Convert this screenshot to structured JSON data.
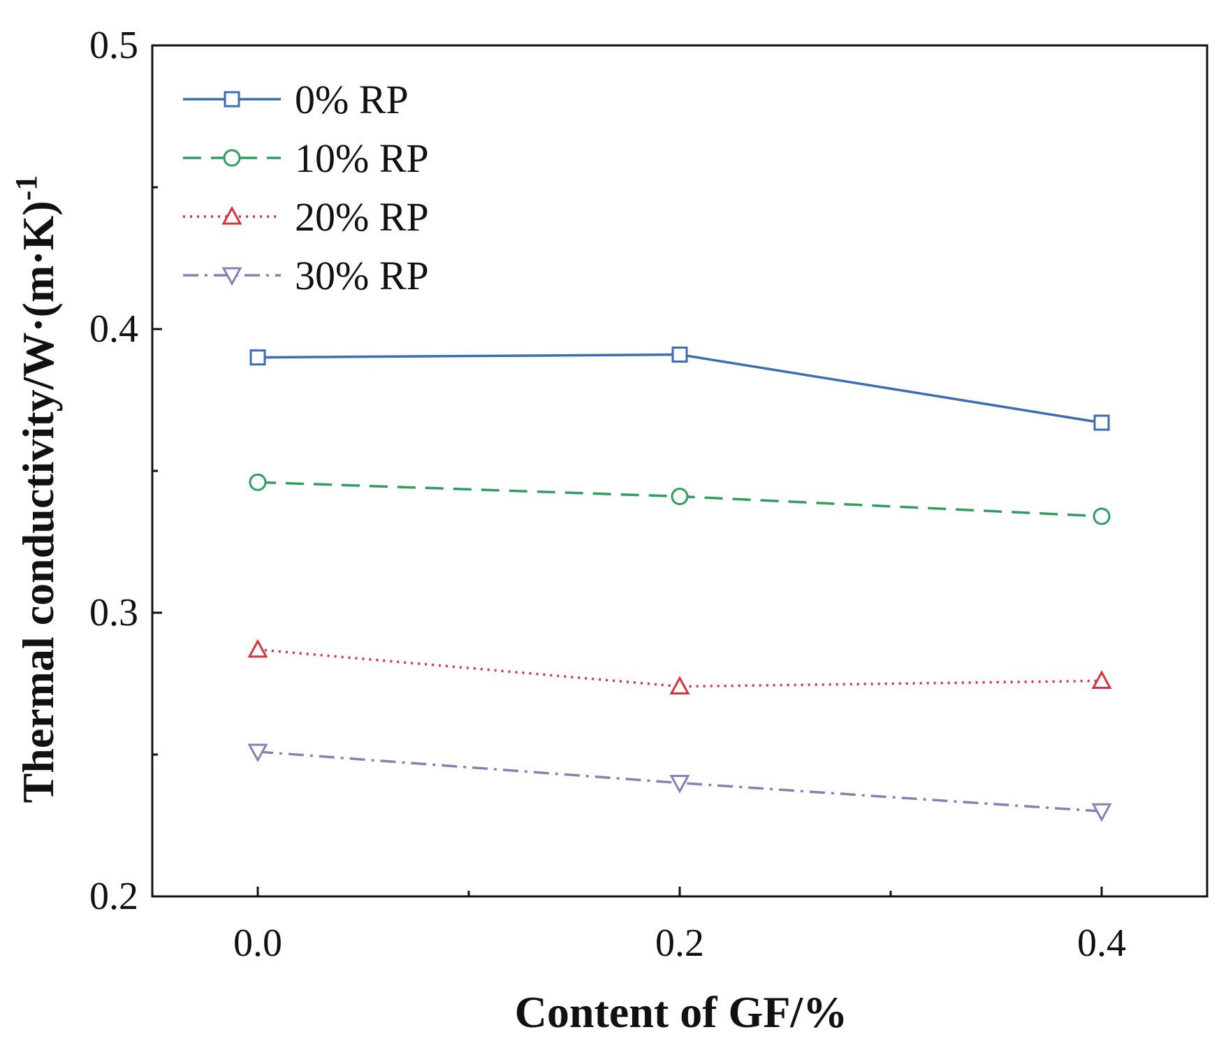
{
  "chart_data": {
    "type": "line",
    "title": "",
    "xlabel": "Content of GF/%",
    "ylabel": "Thermal conductivity/W·(m·K)",
    "ylabel_superscript": "-1",
    "x": [
      0.0,
      0.2,
      0.4
    ],
    "xlim": [
      -0.05,
      0.45
    ],
    "ylim": [
      0.2,
      0.5
    ],
    "xticks": [
      0.0,
      0.2,
      0.4
    ],
    "xtick_labels": [
      "0.0",
      "0.2",
      "0.4"
    ],
    "yticks": [
      0.2,
      0.3,
      0.4,
      0.5
    ],
    "ytick_labels": [
      "0.2",
      "0.3",
      "0.4",
      "0.5"
    ],
    "grid": false,
    "legend_position": "top-left",
    "series": [
      {
        "name": "0% RP",
        "values": [
          0.39,
          0.391,
          0.367
        ],
        "color": "#3a6db5",
        "marker": "square",
        "dash": "solid"
      },
      {
        "name": "10% RP",
        "values": [
          0.346,
          0.341,
          0.334
        ],
        "color": "#2f9e5f",
        "marker": "circle",
        "dash": "dashed"
      },
      {
        "name": "20% RP",
        "values": [
          0.287,
          0.274,
          0.276
        ],
        "color": "#d8333f",
        "marker": "triangle-up",
        "dash": "dotted"
      },
      {
        "name": "30% RP",
        "values": [
          0.251,
          0.24,
          0.23
        ],
        "color": "#8a7fb5",
        "marker": "triangle-down",
        "dash": "dashdot"
      }
    ]
  }
}
